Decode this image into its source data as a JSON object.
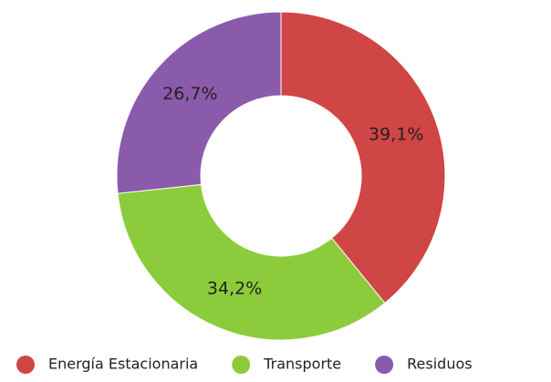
{
  "chart_data": {
    "type": "donut",
    "categories": [
      "Energía Estacionaria",
      "Transporte",
      "Residuos"
    ],
    "values": [
      39.1,
      34.2,
      26.7
    ],
    "value_labels": [
      "39,1%",
      "34,2%",
      "26,7%"
    ],
    "colors": [
      "#d04545",
      "#8ccc3c",
      "#8a5aab"
    ],
    "legend": "bottom"
  }
}
